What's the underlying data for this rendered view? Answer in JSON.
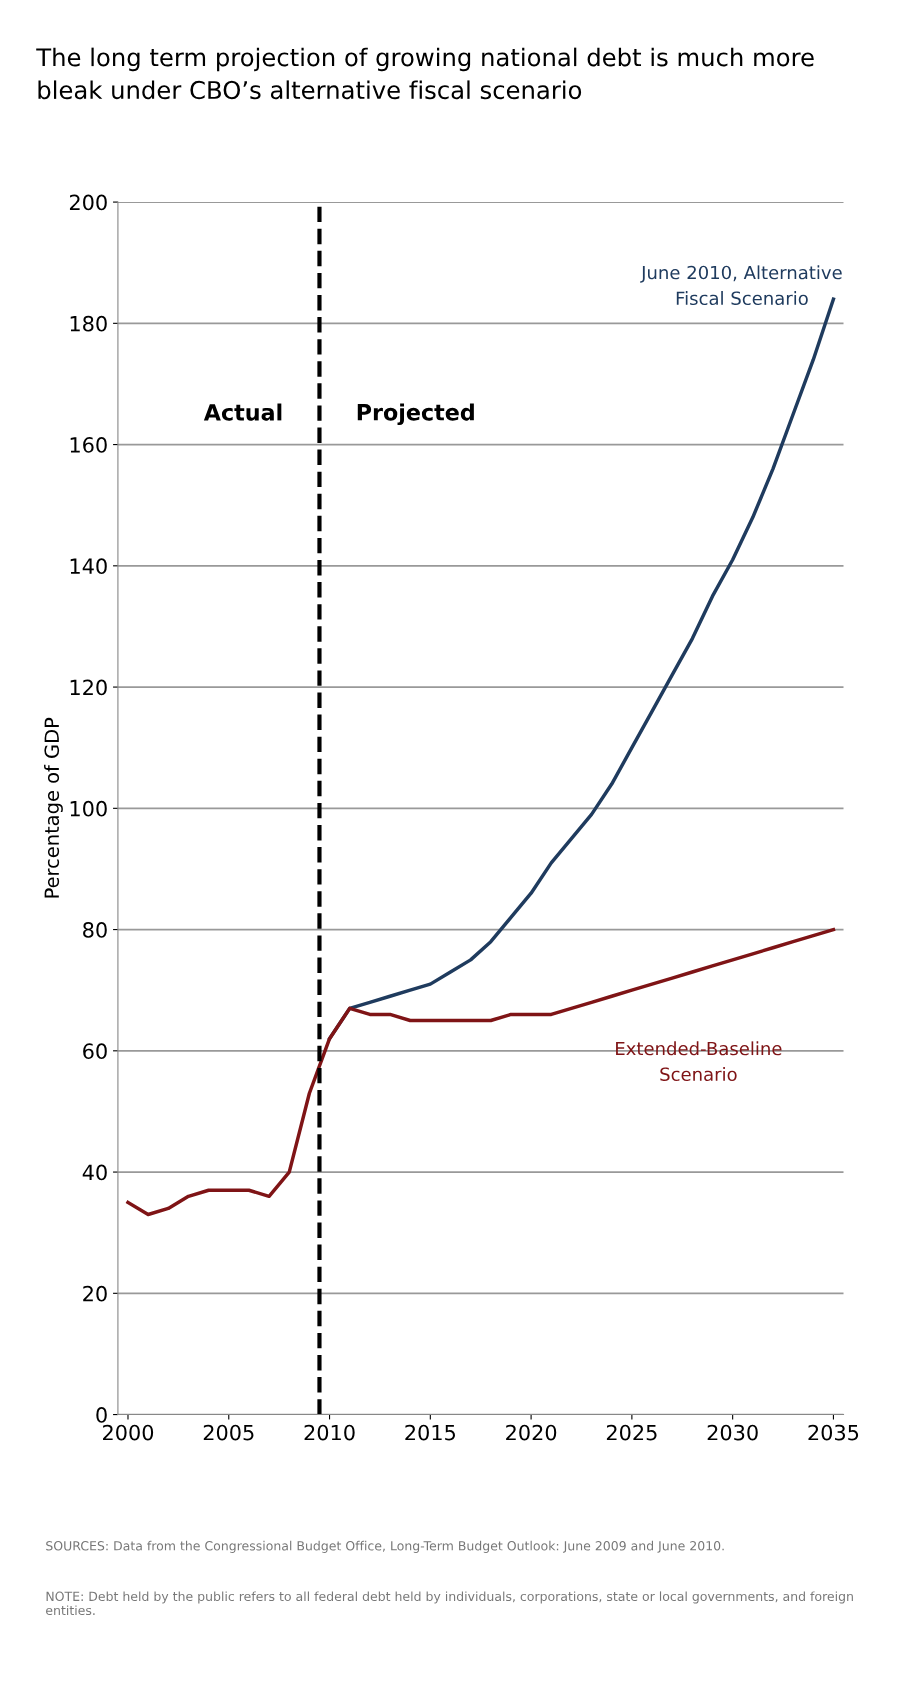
{
  "chart_data": {
    "type": "line",
    "title": "The long term projection of growing national debt is much more\nbleak under CBO’s alternative fiscal scenario",
    "ylabel": "Percentage of GDP",
    "xlim": [
      1999.5,
      2035.5
    ],
    "xticks": [
      2000,
      2005,
      2010,
      2015,
      2020,
      2025,
      2030,
      2035
    ],
    "ylim": [
      0,
      200
    ],
    "yticks": [
      0,
      20,
      40,
      60,
      80,
      100,
      120,
      140,
      160,
      180,
      200
    ],
    "grid": "y",
    "legend": false,
    "marker": "none",
    "line_style": "solid",
    "series": [
      {
        "name": "June 2010, Alternative\nFiscal Scenario",
        "color": "#1f3b5e",
        "x": [
          2010,
          2011,
          2012,
          2013,
          2014,
          2015,
          2016,
          2017,
          2018,
          2019,
          2020,
          2021,
          2022,
          2023,
          2024,
          2025,
          2026,
          2027,
          2028,
          2029,
          2030,
          2031,
          2032,
          2033,
          2034,
          2035
        ],
        "values": [
          62,
          67,
          68,
          69,
          70,
          71,
          73,
          75,
          78,
          82,
          86,
          91,
          95,
          99,
          104,
          110,
          116,
          122,
          128,
          135,
          141,
          148,
          156,
          165,
          174,
          184
        ]
      },
      {
        "name": "Extended-Baseline\nScenario",
        "color": "#7f1416",
        "x": [
          2000,
          2001,
          2002,
          2003,
          2004,
          2005,
          2006,
          2007,
          2008,
          2009,
          2010,
          2011,
          2012,
          2013,
          2014,
          2015,
          2016,
          2017,
          2018,
          2019,
          2020,
          2021,
          2022,
          2023,
          2024,
          2025,
          2026,
          2027,
          2028,
          2029,
          2030,
          2031,
          2032,
          2033,
          2034,
          2035
        ],
        "values": [
          35,
          33,
          34,
          36,
          37,
          37,
          37,
          36,
          40,
          53,
          62,
          67,
          66,
          66,
          65,
          65,
          65,
          65,
          65,
          66,
          66,
          66,
          67,
          68,
          69,
          70,
          71,
          72,
          73,
          74,
          75,
          76,
          77,
          78,
          79,
          80
        ]
      }
    ],
    "ref_lines": [
      {
        "axis": "x",
        "value": 2009.5,
        "color": "#000000",
        "line_style": "dashed"
      }
    ],
    "annotations": [
      "Actual",
      "Projected",
      "SOURCES: Data from the Congressional Budget Office, Long-Term Budget Outlook: June 2009 and June 2010.",
      "NOTE: Debt held by the public refers to all federal debt held by individuals, corporations, state or local governments, and foreign entities."
    ]
  }
}
